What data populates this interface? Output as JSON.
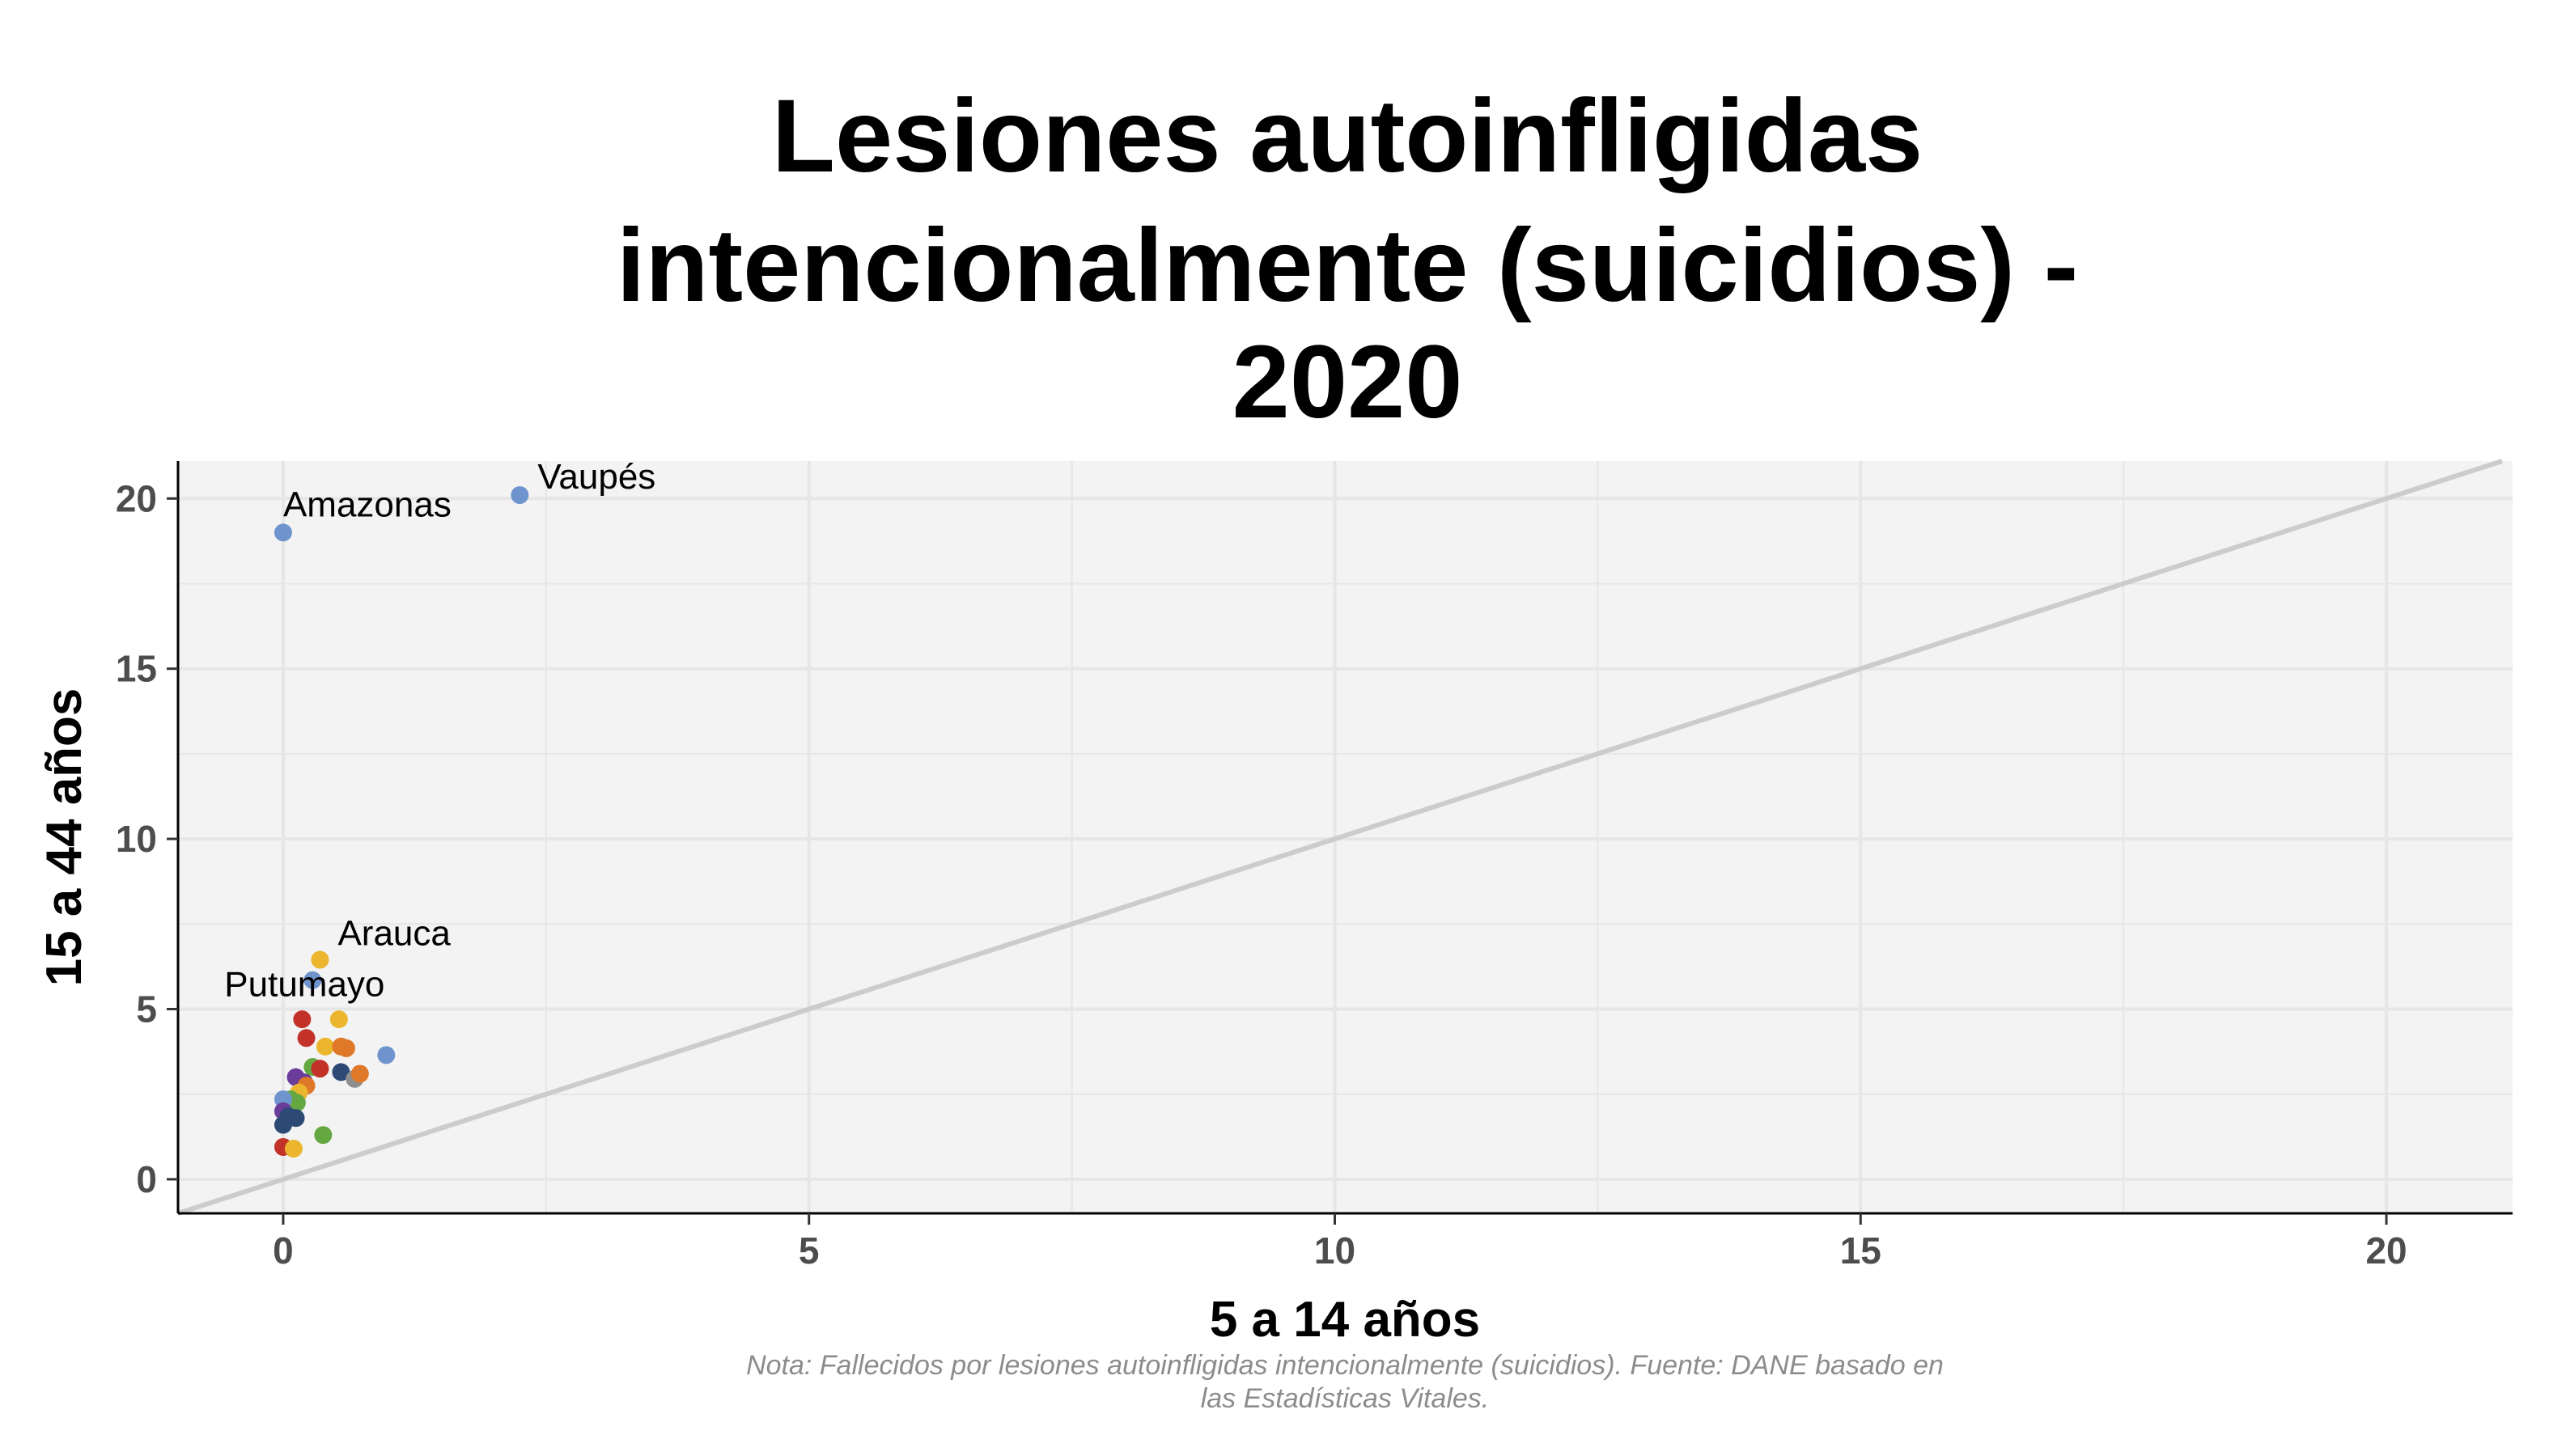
{
  "chart_data": {
    "type": "scatter",
    "title_lines": [
      "Lesiones autoinfligidas",
      "intencionalmente (suicidios) -",
      "2020"
    ],
    "xlabel": "5 a 14 años",
    "ylabel": "15 a 44 años",
    "caption_lines": [
      "Nota: Fallecidos por lesiones autoinfligidas intencionalmente (suicidios). Fuente: DANE basado en",
      "las Estadísticas Vitales."
    ],
    "xlim": [
      -1,
      21.2
    ],
    "ylim": [
      -1,
      21.1
    ],
    "x_ticks": [
      "0",
      "5",
      "10",
      "15",
      "20"
    ],
    "y_ticks": [
      "0",
      "5",
      "10",
      "15",
      "20"
    ],
    "grid": true,
    "reference_line": "y = x",
    "colors": {
      "panel": "#f3f3f3",
      "grid": "#e6e6e6",
      "reference_line": "#cccccc",
      "blue": "#6f94cd",
      "yellow": "#ebb62d",
      "red": "#c23228",
      "orange": "#e0782a",
      "purple": "#6a3d9a",
      "navy": "#2c4a74",
      "green": "#65a842",
      "gray": "#8e8e8e"
    },
    "points": [
      {
        "x": 2.25,
        "y": 20.1,
        "color": "blue",
        "label": "Vaupés"
      },
      {
        "x": 0.0,
        "y": 19.0,
        "color": "blue",
        "label": "Amazonas"
      },
      {
        "x": 0.35,
        "y": 6.45,
        "color": "yellow",
        "label": "Arauca"
      },
      {
        "x": 0.28,
        "y": 5.85,
        "color": "blue",
        "label": "Putumayo"
      },
      {
        "x": 0.98,
        "y": 3.65,
        "color": "blue"
      },
      {
        "x": 0.18,
        "y": 4.7,
        "color": "red"
      },
      {
        "x": 0.22,
        "y": 4.15,
        "color": "red"
      },
      {
        "x": 0.53,
        "y": 4.7,
        "color": "yellow"
      },
      {
        "x": 0.4,
        "y": 3.9,
        "color": "yellow"
      },
      {
        "x": 0.55,
        "y": 3.9,
        "color": "orange"
      },
      {
        "x": 0.6,
        "y": 3.85,
        "color": "orange"
      },
      {
        "x": 0.28,
        "y": 3.3,
        "color": "green"
      },
      {
        "x": 0.35,
        "y": 3.25,
        "color": "red"
      },
      {
        "x": 0.55,
        "y": 3.15,
        "color": "navy"
      },
      {
        "x": 0.68,
        "y": 2.95,
        "color": "gray"
      },
      {
        "x": 0.73,
        "y": 3.1,
        "color": "orange"
      },
      {
        "x": 0.12,
        "y": 3.0,
        "color": "purple"
      },
      {
        "x": 0.2,
        "y": 2.85,
        "color": "purple"
      },
      {
        "x": 0.22,
        "y": 2.75,
        "color": "orange"
      },
      {
        "x": 0.15,
        "y": 2.55,
        "color": "yellow"
      },
      {
        "x": 0.07,
        "y": 2.35,
        "color": "green"
      },
      {
        "x": 0.13,
        "y": 2.25,
        "color": "green"
      },
      {
        "x": 0.0,
        "y": 2.35,
        "color": "blue"
      },
      {
        "x": 0.0,
        "y": 2.0,
        "color": "purple"
      },
      {
        "x": 0.05,
        "y": 1.85,
        "color": "navy"
      },
      {
        "x": 0.12,
        "y": 1.8,
        "color": "navy"
      },
      {
        "x": 0.0,
        "y": 1.6,
        "color": "navy"
      },
      {
        "x": 0.38,
        "y": 1.3,
        "color": "green"
      },
      {
        "x": 0.0,
        "y": 0.95,
        "color": "red"
      },
      {
        "x": 0.1,
        "y": 0.9,
        "color": "yellow"
      }
    ]
  }
}
